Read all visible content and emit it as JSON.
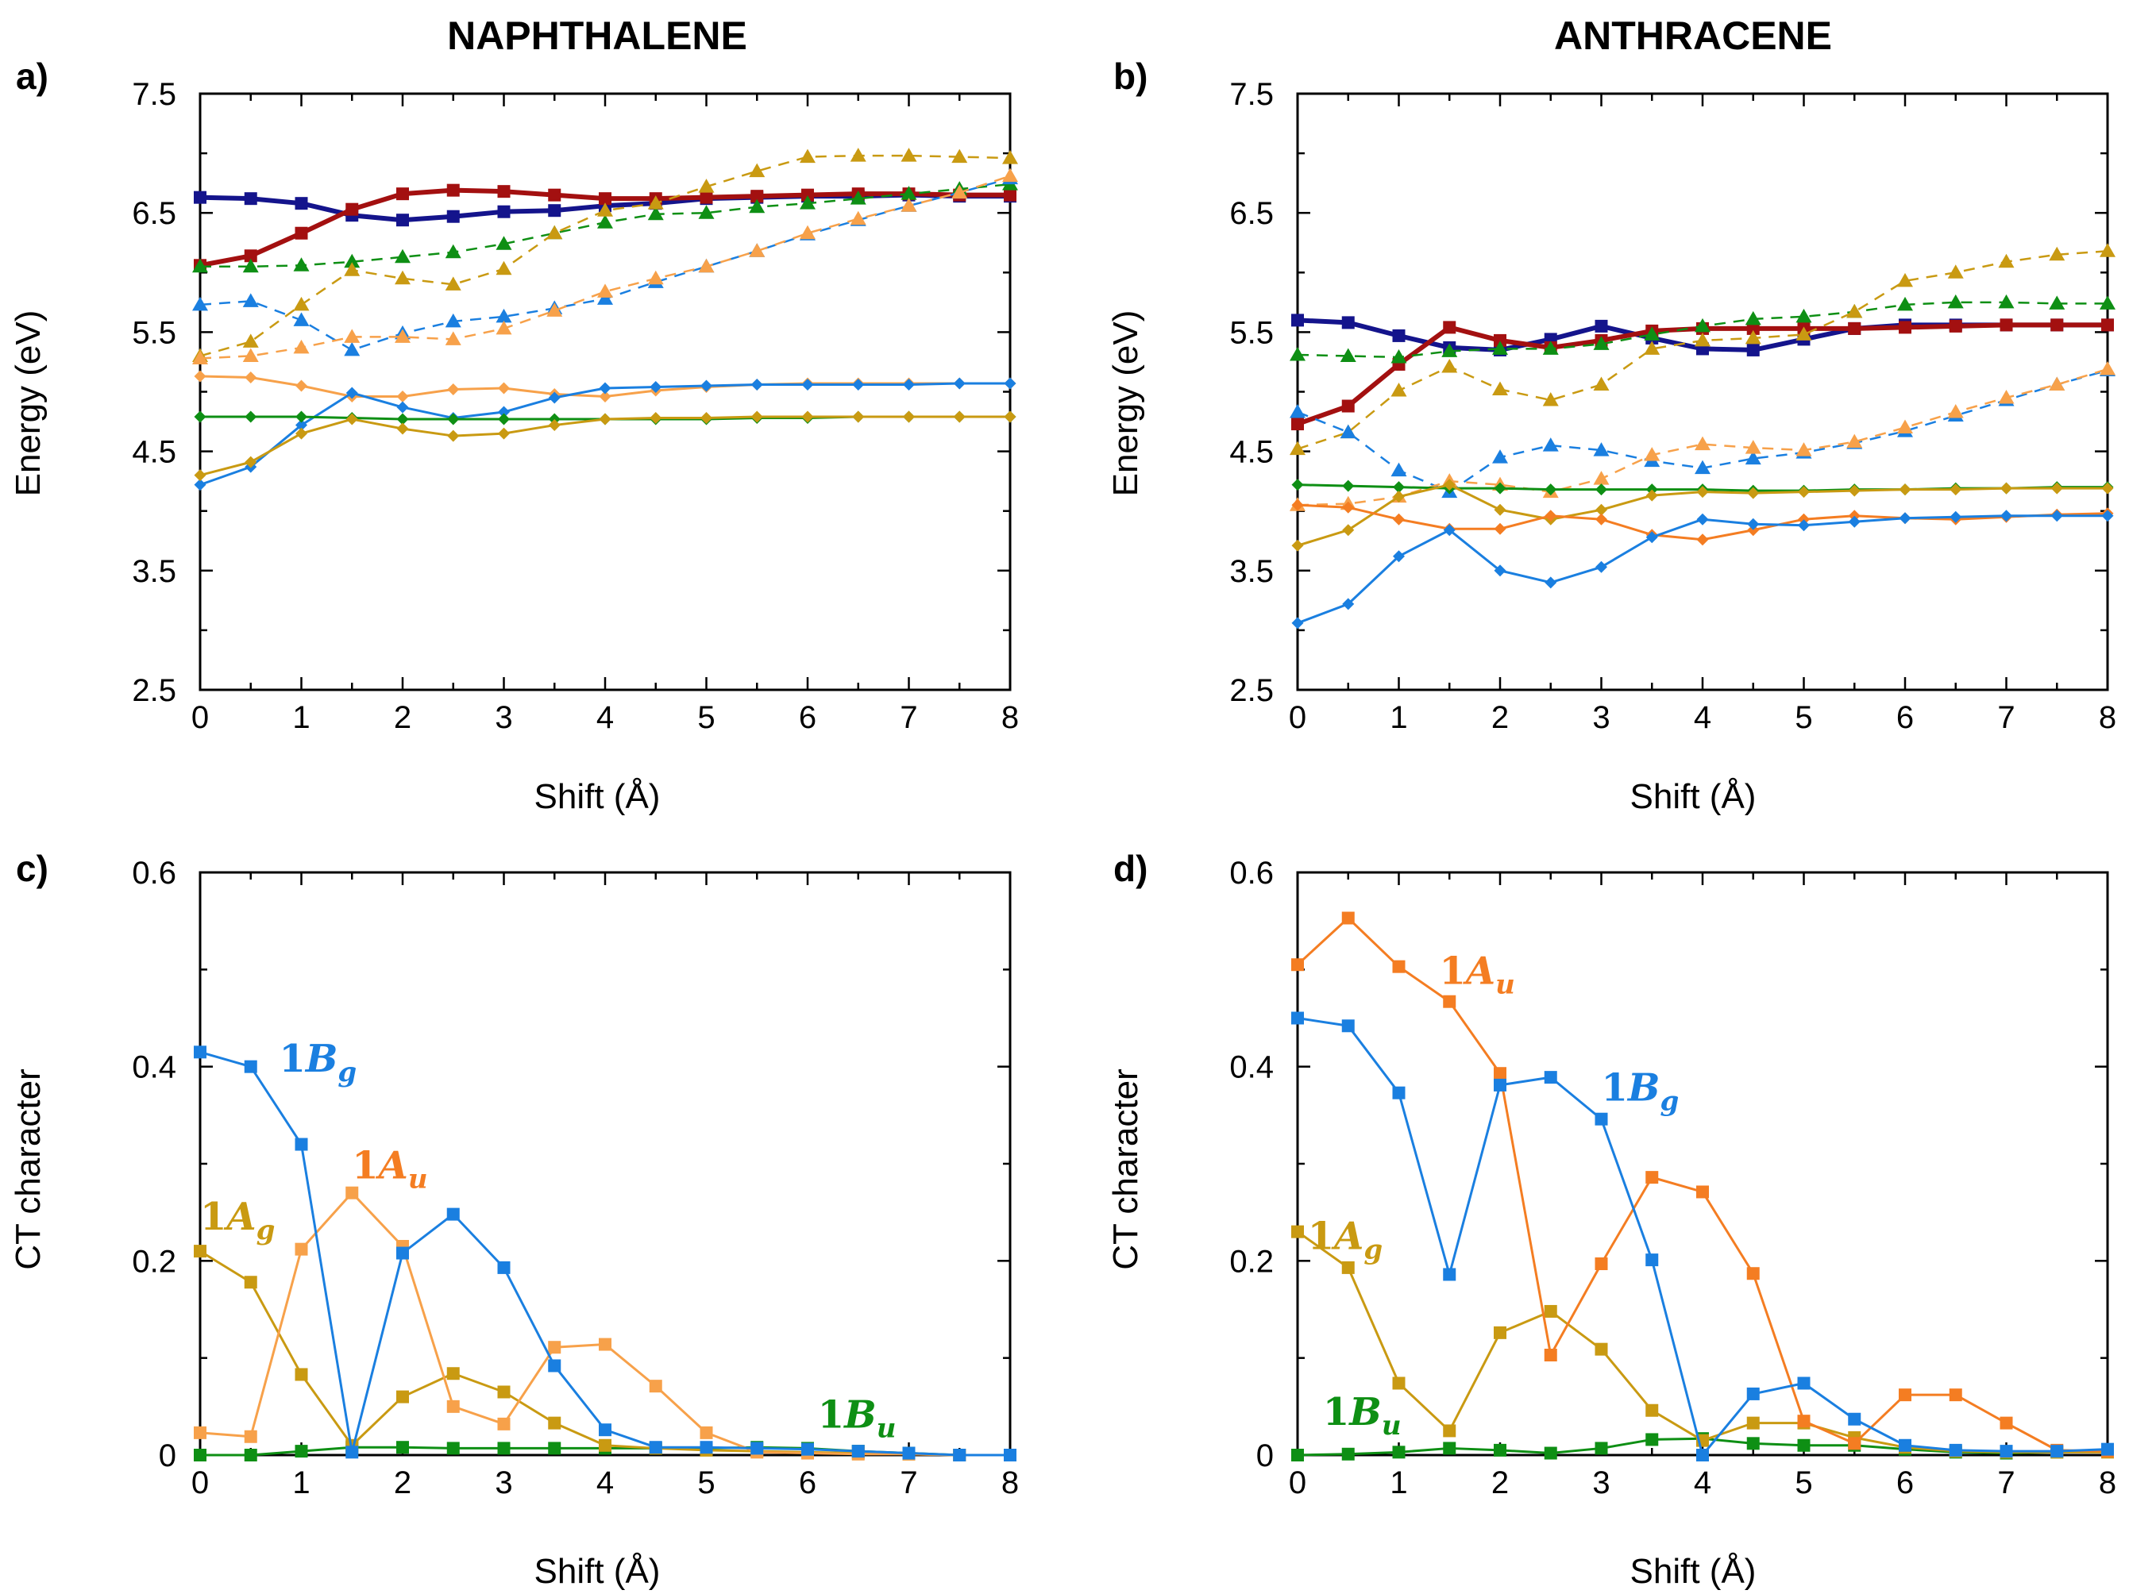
{
  "colors": {
    "blue": "#1a7fe0",
    "orange": "#f47d22",
    "gold": "#c99a12",
    "green": "#0e8f14",
    "navy": "#14148c",
    "darkred": "#a31010",
    "lightorange": "#f7a14a"
  },
  "chart_data": [
    {
      "id": "a",
      "panel_label": "a)",
      "title": "NAPHTHALENE",
      "type": "line",
      "xlabel": "Shift (Å)",
      "ylabel": "Energy (eV)",
      "xlim": [
        0,
        8
      ],
      "ylim": [
        2.5,
        7.5
      ],
      "xticks": [
        0,
        1,
        2,
        3,
        4,
        5,
        6,
        7,
        8
      ],
      "yticks": [
        2.5,
        3.5,
        4.5,
        5.5,
        6.5,
        7.5
      ],
      "ytick_labels": [
        "2.5",
        "3.5",
        "4.5",
        "5.5",
        "6.5",
        "7.5"
      ],
      "x": [
        0,
        0.5,
        1,
        1.5,
        2,
        2.5,
        3,
        3.5,
        4,
        4.5,
        5,
        5.5,
        6,
        6.5,
        7,
        7.5,
        8
      ],
      "series": [
        {
          "name": "navy square",
          "color": "navy",
          "marker": "square",
          "dash": false,
          "width": 6,
          "values": [
            6.63,
            6.62,
            6.58,
            6.48,
            6.44,
            6.47,
            6.51,
            6.52,
            6.56,
            6.58,
            6.62,
            6.63,
            6.64,
            6.64,
            6.65,
            6.64,
            6.64
          ]
        },
        {
          "name": "darkred square",
          "color": "darkred",
          "marker": "square",
          "dash": false,
          "width": 6,
          "values": [
            6.06,
            6.14,
            6.33,
            6.53,
            6.66,
            6.69,
            6.68,
            6.65,
            6.62,
            6.62,
            6.63,
            6.64,
            6.65,
            6.66,
            6.66,
            6.65,
            6.65
          ]
        },
        {
          "name": "green triangle dashed",
          "color": "green",
          "marker": "triangle",
          "dash": true,
          "width": 2.5,
          "values": [
            6.05,
            6.05,
            6.06,
            6.09,
            6.13,
            6.17,
            6.24,
            6.33,
            6.42,
            6.49,
            6.5,
            6.55,
            6.58,
            6.62,
            6.66,
            6.7,
            6.74
          ]
        },
        {
          "name": "gold triangle dashed",
          "color": "gold",
          "marker": "triangle",
          "dash": true,
          "width": 2.5,
          "values": [
            5.3,
            5.42,
            5.73,
            6.02,
            5.95,
            5.9,
            6.03,
            6.33,
            6.52,
            6.58,
            6.72,
            6.85,
            6.97,
            6.98,
            6.98,
            6.97,
            6.96
          ]
        },
        {
          "name": "blue triangle dashed",
          "color": "blue",
          "marker": "triangle",
          "dash": true,
          "width": 2.5,
          "values": [
            5.73,
            5.76,
            5.6,
            5.35,
            5.49,
            5.59,
            5.63,
            5.7,
            5.78,
            5.92,
            6.05,
            6.18,
            6.32,
            6.44,
            6.56,
            6.67,
            6.79
          ]
        },
        {
          "name": "lightorange triangle dashed",
          "color": "lightorange",
          "marker": "triangle",
          "dash": true,
          "width": 2.5,
          "values": [
            5.28,
            5.3,
            5.37,
            5.46,
            5.46,
            5.44,
            5.53,
            5.68,
            5.84,
            5.95,
            6.05,
            6.18,
            6.33,
            6.45,
            6.56,
            6.67,
            6.81
          ]
        },
        {
          "name": "orange diamond",
          "color": "lightorange",
          "marker": "diamond",
          "dash": false,
          "width": 3,
          "values": [
            5.13,
            5.12,
            5.05,
            4.96,
            4.96,
            5.02,
            5.03,
            4.98,
            4.96,
            5.01,
            5.04,
            5.06,
            5.07,
            5.07,
            5.07,
            5.07,
            5.07
          ]
        },
        {
          "name": "blue diamond",
          "color": "blue",
          "marker": "diamond",
          "dash": false,
          "width": 3,
          "values": [
            4.22,
            4.37,
            4.72,
            4.99,
            4.87,
            4.78,
            4.83,
            4.95,
            5.03,
            5.04,
            5.05,
            5.06,
            5.06,
            5.06,
            5.06,
            5.07,
            5.07
          ]
        },
        {
          "name": "green diamond",
          "color": "green",
          "marker": "diamond",
          "dash": false,
          "width": 3,
          "values": [
            4.79,
            4.79,
            4.79,
            4.78,
            4.77,
            4.77,
            4.77,
            4.77,
            4.77,
            4.77,
            4.77,
            4.78,
            4.78,
            4.79,
            4.79,
            4.79,
            4.79
          ]
        },
        {
          "name": "gold diamond",
          "color": "gold",
          "marker": "diamond",
          "dash": false,
          "width": 3,
          "values": [
            4.3,
            4.41,
            4.65,
            4.77,
            4.69,
            4.63,
            4.65,
            4.72,
            4.77,
            4.78,
            4.78,
            4.79,
            4.79,
            4.79,
            4.79,
            4.79,
            4.79
          ]
        }
      ],
      "annotations": []
    },
    {
      "id": "b",
      "panel_label": "b)",
      "title": "ANTHRACENE",
      "type": "line",
      "xlabel": "Shift (Å)",
      "ylabel": "Energy (eV)",
      "xlim": [
        0,
        8
      ],
      "ylim": [
        2.5,
        7.5
      ],
      "xticks": [
        0,
        1,
        2,
        3,
        4,
        5,
        6,
        7,
        8
      ],
      "yticks": [
        2.5,
        3.5,
        4.5,
        5.5,
        6.5,
        7.5
      ],
      "ytick_labels": [
        "2.5",
        "3.5",
        "4.5",
        "5.5",
        "6.5",
        "7.5"
      ],
      "x": [
        0,
        0.5,
        1,
        1.5,
        2,
        2.5,
        3,
        3.5,
        4,
        4.5,
        5,
        5.5,
        6,
        6.5,
        7,
        7.5,
        8
      ],
      "series": [
        {
          "name": "navy square",
          "color": "navy",
          "marker": "square",
          "dash": false,
          "width": 6,
          "values": [
            5.6,
            5.58,
            5.47,
            5.37,
            5.35,
            5.44,
            5.55,
            5.45,
            5.36,
            5.35,
            5.44,
            5.53,
            5.56,
            5.56,
            5.56,
            5.56,
            5.56
          ]
        },
        {
          "name": "darkred square",
          "color": "darkred",
          "marker": "square",
          "dash": false,
          "width": 6,
          "values": [
            4.73,
            4.88,
            5.23,
            5.54,
            5.43,
            5.37,
            5.43,
            5.51,
            5.53,
            5.53,
            5.53,
            5.53,
            5.54,
            5.55,
            5.56,
            5.56,
            5.56
          ]
        },
        {
          "name": "green triangle dashed",
          "color": "green",
          "marker": "triangle",
          "dash": true,
          "width": 2.5,
          "values": [
            5.31,
            5.3,
            5.29,
            5.34,
            5.36,
            5.36,
            5.4,
            5.48,
            5.55,
            5.61,
            5.63,
            5.67,
            5.73,
            5.75,
            5.75,
            5.74,
            5.74
          ]
        },
        {
          "name": "gold triangle dashed",
          "color": "gold",
          "marker": "triangle",
          "dash": true,
          "width": 2.5,
          "values": [
            4.52,
            4.66,
            5.01,
            5.21,
            5.02,
            4.93,
            5.06,
            5.36,
            5.43,
            5.45,
            5.48,
            5.67,
            5.93,
            6.0,
            6.09,
            6.15,
            6.18
          ]
        },
        {
          "name": "blue triangle dashed",
          "color": "blue",
          "marker": "triangle",
          "dash": true,
          "width": 2.5,
          "values": [
            4.83,
            4.66,
            4.34,
            4.16,
            4.45,
            4.55,
            4.51,
            4.42,
            4.36,
            4.44,
            4.49,
            4.57,
            4.67,
            4.8,
            4.93,
            5.06,
            5.18
          ]
        },
        {
          "name": "lightorange triangle dashed",
          "color": "lightorange",
          "marker": "triangle",
          "dash": true,
          "width": 2.5,
          "values": [
            4.05,
            4.06,
            4.12,
            4.25,
            4.22,
            4.16,
            4.27,
            4.47,
            4.56,
            4.53,
            4.51,
            4.58,
            4.7,
            4.83,
            4.95,
            5.06,
            5.19
          ]
        },
        {
          "name": "green diamond",
          "color": "green",
          "marker": "diamond",
          "dash": false,
          "width": 3,
          "values": [
            4.22,
            4.21,
            4.2,
            4.19,
            4.19,
            4.18,
            4.18,
            4.18,
            4.18,
            4.17,
            4.17,
            4.18,
            4.18,
            4.19,
            4.19,
            4.2,
            4.2
          ]
        },
        {
          "name": "gold diamond",
          "color": "gold",
          "marker": "diamond",
          "dash": false,
          "width": 3,
          "values": [
            3.71,
            3.84,
            4.12,
            4.22,
            4.01,
            3.93,
            4.01,
            4.13,
            4.16,
            4.15,
            4.16,
            4.17,
            4.18,
            4.18,
            4.19,
            4.19,
            4.19
          ]
        },
        {
          "name": "orange diamond",
          "color": "orange",
          "marker": "diamond",
          "dash": false,
          "width": 3,
          "values": [
            4.05,
            4.03,
            3.93,
            3.85,
            3.85,
            3.96,
            3.93,
            3.8,
            3.76,
            3.84,
            3.93,
            3.96,
            3.94,
            3.93,
            3.95,
            3.97,
            3.98
          ]
        },
        {
          "name": "blue diamond",
          "color": "blue",
          "marker": "diamond",
          "dash": false,
          "width": 3,
          "values": [
            3.06,
            3.22,
            3.62,
            3.84,
            3.5,
            3.4,
            3.53,
            3.78,
            3.93,
            3.89,
            3.88,
            3.91,
            3.94,
            3.95,
            3.96,
            3.96,
            3.96
          ]
        }
      ],
      "annotations": []
    },
    {
      "id": "c",
      "panel_label": "c)",
      "title": "",
      "type": "line",
      "xlabel": "Shift (Å)",
      "ylabel": "CT character",
      "xlim": [
        0,
        8
      ],
      "ylim": [
        0,
        0.6
      ],
      "xticks": [
        0,
        1,
        2,
        3,
        4,
        5,
        6,
        7,
        8
      ],
      "yticks": [
        0,
        0.2,
        0.4,
        0.6
      ],
      "ytick_labels": [
        "0",
        "0.2",
        "0.4",
        "0.6"
      ],
      "x": [
        0,
        0.5,
        1,
        1.5,
        2,
        2.5,
        3,
        3.5,
        4,
        4.5,
        5,
        5.5,
        6,
        6.5,
        7,
        7.5,
        8
      ],
      "series": [
        {
          "name": "1Bu",
          "color": "green",
          "marker": "square",
          "dash": false,
          "width": 3,
          "values": [
            0.0,
            0.0,
            0.004,
            0.008,
            0.008,
            0.007,
            0.007,
            0.007,
            0.007,
            0.007,
            0.007,
            0.008,
            0.007,
            0.004,
            0.002,
            0.0,
            0.0
          ]
        },
        {
          "name": "1Ag",
          "color": "gold",
          "marker": "square",
          "dash": false,
          "width": 3,
          "values": [
            0.21,
            0.178,
            0.083,
            0.01,
            0.06,
            0.084,
            0.065,
            0.033,
            0.01,
            0.007,
            0.005,
            0.004,
            0.003,
            0.002,
            0.001,
            0.0,
            0.0
          ]
        },
        {
          "name": "1Au",
          "color": "lightorange",
          "marker": "square",
          "dash": false,
          "width": 3,
          "values": [
            0.023,
            0.019,
            0.212,
            0.27,
            0.215,
            0.05,
            0.032,
            0.111,
            0.114,
            0.071,
            0.023,
            0.003,
            0.002,
            0.001,
            0.001,
            0.0,
            0.0
          ]
        },
        {
          "name": "1Bg",
          "color": "blue",
          "marker": "square",
          "dash": false,
          "width": 3,
          "values": [
            0.415,
            0.4,
            0.32,
            0.003,
            0.208,
            0.248,
            0.193,
            0.092,
            0.026,
            0.008,
            0.008,
            0.007,
            0.006,
            0.004,
            0.002,
            0.0,
            0.0
          ]
        }
      ],
      "annotations": [
        {
          "base": "1",
          "italic": "B",
          "sub": "g",
          "color": "blue",
          "x": 0.78,
          "y": 0.395
        },
        {
          "base": "1",
          "italic": "A",
          "sub": "u",
          "color": "orange",
          "x": 1.5,
          "y": 0.285
        },
        {
          "base": "1",
          "italic": "A",
          "sub": "g",
          "color": "gold",
          "x": 0.0,
          "y": 0.232
        },
        {
          "base": "1",
          "italic": "B",
          "sub": "u",
          "color": "green",
          "x": 6.1,
          "y": 0.028
        }
      ]
    },
    {
      "id": "d",
      "panel_label": "d)",
      "title": "",
      "type": "line",
      "xlabel": "Shift (Å)",
      "ylabel": "CT character",
      "xlim": [
        0,
        8
      ],
      "ylim": [
        0,
        0.6
      ],
      "xticks": [
        0,
        1,
        2,
        3,
        4,
        5,
        6,
        7,
        8
      ],
      "yticks": [
        0,
        0.2,
        0.4,
        0.6
      ],
      "ytick_labels": [
        "0",
        "0.2",
        "0.4",
        "0.6"
      ],
      "x": [
        0,
        0.5,
        1,
        1.5,
        2,
        2.5,
        3,
        3.5,
        4,
        4.5,
        5,
        5.5,
        6,
        6.5,
        7,
        7.5,
        8
      ],
      "series": [
        {
          "name": "1Bu",
          "color": "green",
          "marker": "square",
          "dash": false,
          "width": 3,
          "values": [
            0.0,
            0.001,
            0.003,
            0.007,
            0.005,
            0.002,
            0.007,
            0.016,
            0.017,
            0.012,
            0.01,
            0.01,
            0.006,
            0.003,
            0.002,
            0.003,
            0.004
          ]
        },
        {
          "name": "1Ag",
          "color": "gold",
          "marker": "square",
          "dash": false,
          "width": 3,
          "values": [
            0.23,
            0.193,
            0.074,
            0.025,
            0.126,
            0.148,
            0.109,
            0.046,
            0.015,
            0.033,
            0.033,
            0.018,
            0.008,
            0.004,
            0.003,
            0.003,
            0.003
          ]
        },
        {
          "name": "1Au",
          "color": "orange",
          "marker": "square",
          "dash": false,
          "width": 3,
          "values": [
            0.505,
            0.553,
            0.503,
            0.467,
            0.393,
            0.103,
            0.197,
            0.286,
            0.271,
            0.187,
            0.035,
            0.012,
            0.062,
            0.062,
            0.033,
            0.005,
            0.004
          ]
        },
        {
          "name": "1Bg",
          "color": "blue",
          "marker": "square",
          "dash": false,
          "width": 3,
          "values": [
            0.45,
            0.442,
            0.373,
            0.186,
            0.381,
            0.389,
            0.346,
            0.201,
            0.0,
            0.063,
            0.074,
            0.037,
            0.01,
            0.005,
            0.004,
            0.004,
            0.006
          ]
        }
      ],
      "annotations": [
        {
          "base": "1",
          "italic": "A",
          "sub": "u",
          "color": "orange",
          "x": 1.4,
          "y": 0.485
        },
        {
          "base": "1",
          "italic": "B",
          "sub": "g",
          "color": "blue",
          "x": 3.0,
          "y": 0.365
        },
        {
          "base": "1",
          "italic": "A",
          "sub": "g",
          "color": "gold",
          "x": 0.1,
          "y": 0.212
        },
        {
          "base": "1",
          "italic": "B",
          "sub": "u",
          "color": "green",
          "x": 0.25,
          "y": 0.031
        }
      ]
    }
  ]
}
